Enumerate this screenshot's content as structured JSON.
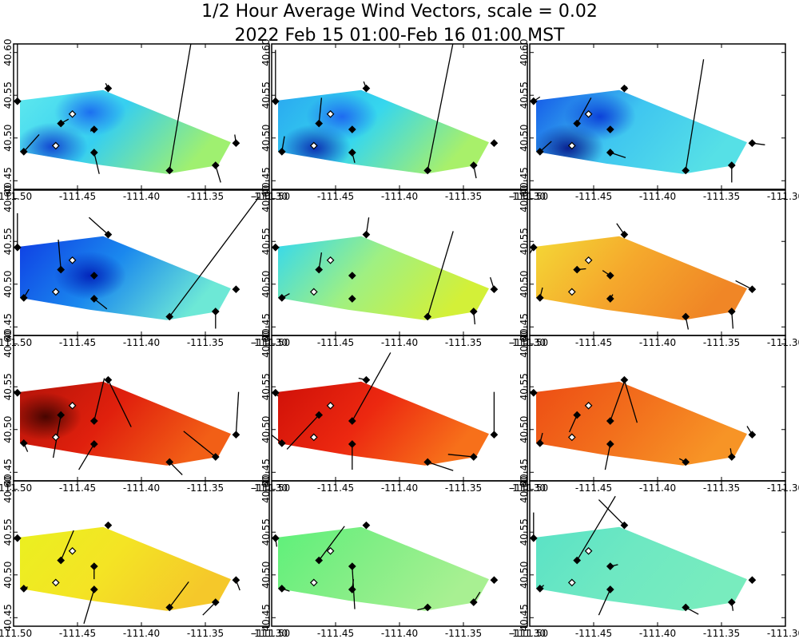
{
  "title": "1/2 Hour Average Wind Vectors, scale =  0.02",
  "subtitle": "2022 Feb 15 01:00-Feb 16 01:00 MST",
  "chart_data": {
    "type": "vector-field-map",
    "title": "1/2 Hour Average Wind Vectors, scale =  0.02",
    "subtitle": "2022 Feb 15 01:00-Feb 16 01:00 MST",
    "grid": "4 rows x 3 columns of half-hour panels",
    "xlim": [
      -111.5,
      -111.3
    ],
    "ylim": [
      40.44,
      40.61
    ],
    "x_ticks": [
      -111.5,
      -111.45,
      -111.4,
      -111.35,
      -111.3
    ],
    "x_tick_labels": [
      "-111.50",
      "-111.45",
      "-111.40",
      "-111.35",
      "-111.30"
    ],
    "y_ticks": [
      40.45,
      40.5,
      40.55,
      40.6
    ],
    "y_tick_labels": [
      "40.45",
      "40.50",
      "40.55",
      "40.60"
    ],
    "field_region": [
      [
        -111.495,
        40.484
      ],
      [
        -111.495,
        40.544
      ],
      [
        -111.43,
        40.556
      ],
      [
        -111.33,
        40.495
      ],
      [
        -111.34,
        40.468
      ],
      [
        -111.38,
        40.458
      ],
      [
        -111.44,
        40.47
      ],
      [
        -111.495,
        40.484
      ]
    ],
    "stations": [
      {
        "lon": -111.497,
        "lat": 40.543,
        "filled": true
      },
      {
        "lon": -111.492,
        "lat": 40.484,
        "filled": true
      },
      {
        "lon": -111.463,
        "lat": 40.517,
        "filled": true
      },
      {
        "lon": -111.467,
        "lat": 40.491,
        "filled": false
      },
      {
        "lon": -111.454,
        "lat": 40.528,
        "filled": false
      },
      {
        "lon": -111.437,
        "lat": 40.51,
        "filled": true
      },
      {
        "lon": -111.437,
        "lat": 40.483,
        "filled": true
      },
      {
        "lon": -111.426,
        "lat": 40.558,
        "filled": true
      },
      {
        "lon": -111.378,
        "lat": 40.462,
        "filled": true
      },
      {
        "lon": -111.342,
        "lat": 40.468,
        "filled": true
      },
      {
        "lon": -111.326,
        "lat": 40.494,
        "filled": true
      }
    ],
    "panels": [
      {
        "colormap": [
          [
            0.0,
            "#5ee8ee"
          ],
          [
            0.5,
            "#36cff0"
          ],
          [
            1.0,
            "#9ff070"
          ]
        ],
        "dark_spots": [
          {
            "lon": -111.47,
            "lat": 40.49,
            "color": "#1040d0"
          },
          {
            "lon": -111.44,
            "lat": 40.53,
            "color": "#1a6af0"
          }
        ],
        "vectors": [
          [
            -111.497,
            40.543,
            0.0,
            0.07
          ],
          [
            -111.492,
            40.484,
            0.012,
            0.02
          ],
          [
            -111.463,
            40.517,
            0.006,
            0.005
          ],
          [
            -111.437,
            40.51,
            -0.003,
            -0.002
          ],
          [
            -111.437,
            40.483,
            0.004,
            -0.025
          ],
          [
            -111.426,
            40.558,
            -0.002,
            0.006
          ],
          [
            -111.378,
            40.462,
            0.018,
            0.16
          ],
          [
            -111.342,
            40.468,
            0.004,
            -0.02
          ],
          [
            -111.326,
            40.494,
            -0.001,
            0.01
          ]
        ]
      },
      {
        "colormap": [
          [
            0.0,
            "#2aa8f0"
          ],
          [
            0.5,
            "#36d7ee"
          ],
          [
            1.0,
            "#a8f06a"
          ]
        ],
        "dark_spots": [
          {
            "lon": -111.466,
            "lat": 40.488,
            "color": "#0a2ab0"
          },
          {
            "lon": -111.445,
            "lat": 40.525,
            "color": "#1d66f0"
          }
        ],
        "vectors": [
          [
            -111.497,
            40.543,
            0.0,
            0.06
          ],
          [
            -111.492,
            40.484,
            0.002,
            0.018
          ],
          [
            -111.463,
            40.517,
            0.002,
            0.03
          ],
          [
            -111.437,
            40.483,
            0.002,
            -0.012
          ],
          [
            -111.426,
            40.558,
            -0.002,
            0.008
          ],
          [
            -111.378,
            40.462,
            0.02,
            0.15
          ],
          [
            -111.342,
            40.468,
            0.002,
            -0.015
          ]
        ]
      },
      {
        "colormap": [
          [
            0.0,
            "#1458e8"
          ],
          [
            0.5,
            "#3fc6f0"
          ],
          [
            1.0,
            "#56e0e6"
          ]
        ],
        "dark_spots": [
          {
            "lon": -111.47,
            "lat": 40.488,
            "color": "#071a8c"
          },
          {
            "lon": -111.445,
            "lat": 40.525,
            "color": "#0a3cd8"
          }
        ],
        "vectors": [
          [
            -111.497,
            40.543,
            0.005,
            0.005
          ],
          [
            -111.492,
            40.484,
            0.009,
            0.012
          ],
          [
            -111.463,
            40.517,
            0.011,
            0.03
          ],
          [
            -111.437,
            40.483,
            0.012,
            -0.006
          ],
          [
            -111.426,
            40.558,
            0.002,
            0.002
          ],
          [
            -111.378,
            40.462,
            0.014,
            0.13
          ],
          [
            -111.342,
            40.468,
            0.0,
            -0.02
          ],
          [
            -111.326,
            40.494,
            0.01,
            -0.002
          ]
        ]
      },
      {
        "colormap": [
          [
            0.0,
            "#0f3ee4"
          ],
          [
            0.5,
            "#1a88ee"
          ],
          [
            1.0,
            "#6de8d6"
          ]
        ],
        "dark_spots": [
          {
            "lon": -111.44,
            "lat": 40.51,
            "color": "#0220b8"
          }
        ],
        "vectors": [
          [
            -111.497,
            40.543,
            0.0,
            0.04
          ],
          [
            -111.492,
            40.484,
            0.004,
            0.01
          ],
          [
            -111.463,
            40.517,
            -0.002,
            0.035
          ],
          [
            -111.437,
            40.483,
            0.01,
            -0.012
          ],
          [
            -111.426,
            40.558,
            -0.015,
            0.02
          ],
          [
            -111.378,
            40.462,
            0.07,
            0.14
          ],
          [
            -111.342,
            40.468,
            0.0,
            -0.02
          ]
        ]
      },
      {
        "colormap": [
          [
            0.0,
            "#33d8f0"
          ],
          [
            0.5,
            "#9ff082"
          ],
          [
            1.0,
            "#d3f038"
          ]
        ],
        "dark_spots": [],
        "vectors": [
          [
            -111.497,
            40.543,
            0.003,
            0.0
          ],
          [
            -111.492,
            40.484,
            0.006,
            0.005
          ],
          [
            -111.463,
            40.517,
            0.002,
            0.02
          ],
          [
            -111.437,
            40.51,
            -0.002,
            0.0
          ],
          [
            -111.426,
            40.558,
            0.002,
            0.02
          ],
          [
            -111.378,
            40.462,
            0.02,
            0.1
          ],
          [
            -111.342,
            40.468,
            0.001,
            -0.015
          ],
          [
            -111.326,
            40.494,
            -0.003,
            0.014
          ]
        ]
      },
      {
        "colormap": [
          [
            0.0,
            "#f4d836"
          ],
          [
            0.5,
            "#f5a82c"
          ],
          [
            1.0,
            "#f08626"
          ]
        ],
        "dark_spots": [],
        "vectors": [
          [
            -111.497,
            40.543,
            -0.005,
            -0.012
          ],
          [
            -111.492,
            40.484,
            0.002,
            0.012
          ],
          [
            -111.463,
            40.517,
            0.007,
            0.001
          ],
          [
            -111.437,
            40.51,
            -0.006,
            0.006
          ],
          [
            -111.437,
            40.483,
            0.002,
            0.005
          ],
          [
            -111.426,
            40.558,
            -0.006,
            0.013
          ],
          [
            -111.378,
            40.462,
            0.002,
            -0.015
          ],
          [
            -111.342,
            40.468,
            0.001,
            -0.02
          ],
          [
            -111.326,
            40.494,
            -0.013,
            0.01
          ]
        ]
      },
      {
        "colormap": [
          [
            0.0,
            "#b51309"
          ],
          [
            0.5,
            "#e0200d"
          ],
          [
            1.0,
            "#f25f16"
          ]
        ],
        "dark_spots": [
          {
            "lon": -111.475,
            "lat": 40.515,
            "color": "#400400"
          }
        ],
        "vectors": [
          [
            -111.497,
            40.543,
            -0.003,
            0.002
          ],
          [
            -111.492,
            40.484,
            0.003,
            -0.01
          ],
          [
            -111.463,
            40.517,
            -0.006,
            -0.05
          ],
          [
            -111.437,
            40.51,
            0.008,
            0.05
          ],
          [
            -111.437,
            40.483,
            -0.012,
            -0.03
          ],
          [
            -111.426,
            40.558,
            0.018,
            -0.055
          ],
          [
            -111.378,
            40.462,
            0.01,
            -0.015
          ],
          [
            -111.342,
            40.468,
            -0.025,
            0.03
          ],
          [
            -111.326,
            40.494,
            0.002,
            0.05
          ]
        ]
      },
      {
        "colormap": [
          [
            0.0,
            "#cf1008"
          ],
          [
            0.5,
            "#ec2810"
          ],
          [
            1.0,
            "#f7701a"
          ]
        ],
        "dark_spots": [],
        "vectors": [
          [
            -111.497,
            40.543,
            0.002,
            -0.004
          ],
          [
            -111.492,
            40.484,
            -0.01,
            0.012
          ],
          [
            -111.463,
            40.517,
            -0.025,
            -0.04
          ],
          [
            -111.437,
            40.51,
            0.03,
            0.08
          ],
          [
            -111.437,
            40.483,
            0.0,
            -0.03
          ],
          [
            -111.426,
            40.558,
            -0.006,
            0.002
          ],
          [
            -111.378,
            40.462,
            0.02,
            -0.01
          ],
          [
            -111.342,
            40.468,
            -0.02,
            0.003
          ],
          [
            -111.326,
            40.494,
            0.0,
            0.05
          ]
        ]
      },
      {
        "colormap": [
          [
            0.0,
            "#ed4d14"
          ],
          [
            0.5,
            "#f26e1c"
          ],
          [
            1.0,
            "#f79426"
          ]
        ],
        "dark_spots": [],
        "vectors": [
          [
            -111.497,
            40.543,
            -0.004,
            0.002
          ],
          [
            -111.492,
            40.484,
            0.002,
            0.012
          ],
          [
            -111.463,
            40.517,
            -0.006,
            -0.02
          ],
          [
            -111.437,
            40.51,
            0.012,
            0.05
          ],
          [
            -111.437,
            40.483,
            -0.004,
            -0.03
          ],
          [
            -111.426,
            40.558,
            0.01,
            -0.05
          ],
          [
            -111.378,
            40.462,
            -0.005,
            0.004
          ],
          [
            -111.342,
            40.468,
            -0.001,
            0.01
          ],
          [
            -111.326,
            40.494,
            -0.004,
            0.01
          ]
        ]
      },
      {
        "colormap": [
          [
            0.0,
            "#eaf020"
          ],
          [
            0.5,
            "#f4e424"
          ],
          [
            1.0,
            "#f5c82a"
          ]
        ],
        "dark_spots": [],
        "vectors": [
          [
            -111.497,
            40.543,
            -0.004,
            -0.002
          ],
          [
            -111.492,
            40.484,
            0.003,
            0.002
          ],
          [
            -111.463,
            40.517,
            0.01,
            0.035
          ],
          [
            -111.437,
            40.51,
            0.0,
            -0.015
          ],
          [
            -111.437,
            40.483,
            -0.008,
            -0.04
          ],
          [
            -111.426,
            40.558,
            0.0,
            0.002
          ],
          [
            -111.378,
            40.462,
            0.015,
            0.03
          ],
          [
            -111.342,
            40.468,
            -0.01,
            -0.015
          ],
          [
            -111.326,
            40.494,
            0.003,
            -0.012
          ]
        ]
      },
      {
        "colormap": [
          [
            0.0,
            "#5ef07a"
          ],
          [
            0.5,
            "#84ee86"
          ],
          [
            1.0,
            "#a8f092"
          ]
        ],
        "dark_spots": [],
        "vectors": [
          [
            -111.497,
            40.543,
            0.001,
            -0.01
          ],
          [
            -111.492,
            40.484,
            0.006,
            -0.003
          ],
          [
            -111.463,
            40.517,
            0.02,
            0.04
          ],
          [
            -111.437,
            40.51,
            0.002,
            -0.05
          ],
          [
            -111.437,
            40.483,
            0.001,
            0.012
          ],
          [
            -111.426,
            40.558,
            0.0,
            0.003
          ],
          [
            -111.378,
            40.462,
            -0.008,
            -0.003
          ],
          [
            -111.342,
            40.468,
            0.005,
            0.012
          ],
          [
            -111.326,
            40.494,
            0.0,
            0.0
          ]
        ]
      },
      {
        "colormap": [
          [
            0.0,
            "#5ae2c6"
          ],
          [
            0.5,
            "#6ee8c2"
          ],
          [
            1.0,
            "#78ecbe"
          ]
        ],
        "dark_spots": [],
        "vectors": [
          [
            -111.497,
            40.543,
            0.0,
            0.03
          ],
          [
            -111.492,
            40.484,
            0.003,
            0.004
          ],
          [
            -111.463,
            40.517,
            0.03,
            0.075
          ],
          [
            -111.437,
            40.51,
            0.006,
            0.002
          ],
          [
            -111.437,
            40.483,
            -0.009,
            -0.03
          ],
          [
            -111.426,
            40.558,
            -0.02,
            0.03
          ],
          [
            -111.378,
            40.462,
            0.01,
            -0.008
          ],
          [
            -111.342,
            40.468,
            0.001,
            -0.01
          ]
        ]
      }
    ]
  }
}
